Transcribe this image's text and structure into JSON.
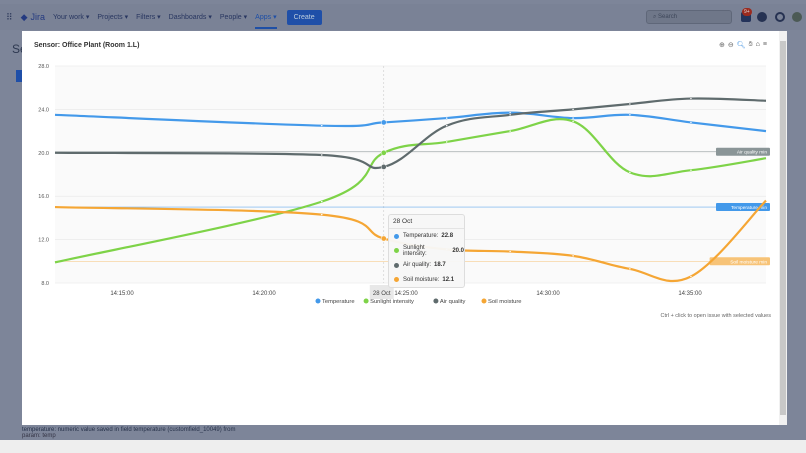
{
  "header": {
    "app": "Jira",
    "nav": [
      "Your work",
      "Projects",
      "Filters",
      "Dashboards",
      "People",
      "Apps"
    ],
    "active": "Apps",
    "create": "Create",
    "search_placeholder": "Search",
    "notifications": "9+"
  },
  "background": {
    "page_title_fragment": "Se",
    "field_text_1": "temperature: numeric value saved in field temperature (customfield_10049) from",
    "field_text_2": "param: temp"
  },
  "modal": {
    "title": "Sensor: Office Plant (Room 1.L)",
    "tools": [
      "zoom-in-icon",
      "zoom-out-icon",
      "magnifier-icon",
      "pan-hand-icon",
      "home-icon",
      "menu-icon"
    ],
    "hint": "Ctrl + click to open issue with selected values"
  },
  "chart_data": {
    "type": "line",
    "xlabel": "",
    "ylabel": "",
    "ylim": [
      8,
      28
    ],
    "yticks": [
      "28.0",
      "24.0",
      "20.0",
      "16.0",
      "12.0",
      "8.0"
    ],
    "xticks": [
      "14:15:00",
      "14:20:00",
      "14:25:00",
      "14:30:00",
      "14:35:00"
    ],
    "x": [
      "14:12:38",
      "14:22:02",
      "14:24:13",
      "14:26:26",
      "14:28:40",
      "14:30:53",
      "14:32:53",
      "14:35:02",
      "14:37:41"
    ],
    "series": [
      {
        "name": "Temperature",
        "color": "#4399ea",
        "values": [
          23.5,
          22.5,
          22.8,
          23.2,
          23.7,
          23.2,
          23.5,
          22.8,
          22.0
        ]
      },
      {
        "name": "Sunlight intensity",
        "color": "#7ed348",
        "values": [
          9.9,
          15.5,
          20.0,
          21.0,
          22.0,
          22.9,
          18.2,
          18.4,
          19.5
        ]
      },
      {
        "name": "Air quality",
        "color": "#5f6b6d",
        "values": [
          20.0,
          19.8,
          18.7,
          22.5,
          23.5,
          24.0,
          24.5,
          25.0,
          24.8
        ]
      },
      {
        "name": "Soil moisture",
        "color": "#f5a634",
        "values": [
          15.0,
          14.3,
          12.1,
          11.1,
          10.9,
          10.5,
          9.3,
          8.6,
          15.6
        ]
      }
    ],
    "thresholds": [
      {
        "label": "Air quality min",
        "value": 20.1,
        "color": "#8a9597"
      },
      {
        "label": "Temperature min",
        "value": 15.0,
        "color": "#4399ea"
      },
      {
        "label": "Soil moisture min",
        "value": 10.0,
        "color": "#f7c377"
      }
    ],
    "crosshair_label": "28 Oct",
    "legend": "bottom",
    "grid": true
  },
  "tooltip": {
    "date": "28 Oct",
    "rows": [
      {
        "label": "Temperature:",
        "value": "22.8",
        "color": "#4399ea"
      },
      {
        "label": "Sunlight intensity:",
        "value": "20.0",
        "color": "#7ed348"
      },
      {
        "label": "Air quality:",
        "value": "18.7",
        "color": "#5f6b6d"
      },
      {
        "label": "Soil moisture:",
        "value": "12.1",
        "color": "#f5a634"
      }
    ]
  }
}
